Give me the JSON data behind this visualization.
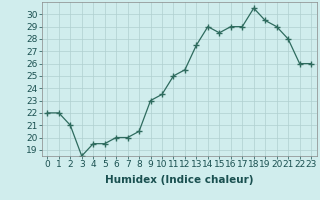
{
  "title": "",
  "xlabel": "Humidex (Indice chaleur)",
  "x": [
    0,
    1,
    2,
    3,
    4,
    5,
    6,
    7,
    8,
    9,
    10,
    11,
    12,
    13,
    14,
    15,
    16,
    17,
    18,
    19,
    20,
    21,
    22,
    23
  ],
  "y": [
    22.0,
    22.0,
    21.0,
    18.5,
    19.5,
    19.5,
    20.0,
    20.0,
    20.5,
    23.0,
    23.5,
    25.0,
    25.5,
    27.5,
    29.0,
    28.5,
    29.0,
    29.0,
    30.5,
    29.5,
    29.0,
    28.0,
    26.0,
    26.0
  ],
  "ylim": [
    18.5,
    31.0
  ],
  "yticks": [
    19,
    20,
    21,
    22,
    23,
    24,
    25,
    26,
    27,
    28,
    29,
    30
  ],
  "xticks": [
    0,
    1,
    2,
    3,
    4,
    5,
    6,
    7,
    8,
    9,
    10,
    11,
    12,
    13,
    14,
    15,
    16,
    17,
    18,
    19,
    20,
    21,
    22,
    23
  ],
  "line_color": "#2e6b5e",
  "marker_color": "#2e6b5e",
  "bg_color": "#d0eded",
  "grid_color": "#b0d0d0",
  "xlabel_fontsize": 7.5,
  "tick_fontsize": 6.5
}
